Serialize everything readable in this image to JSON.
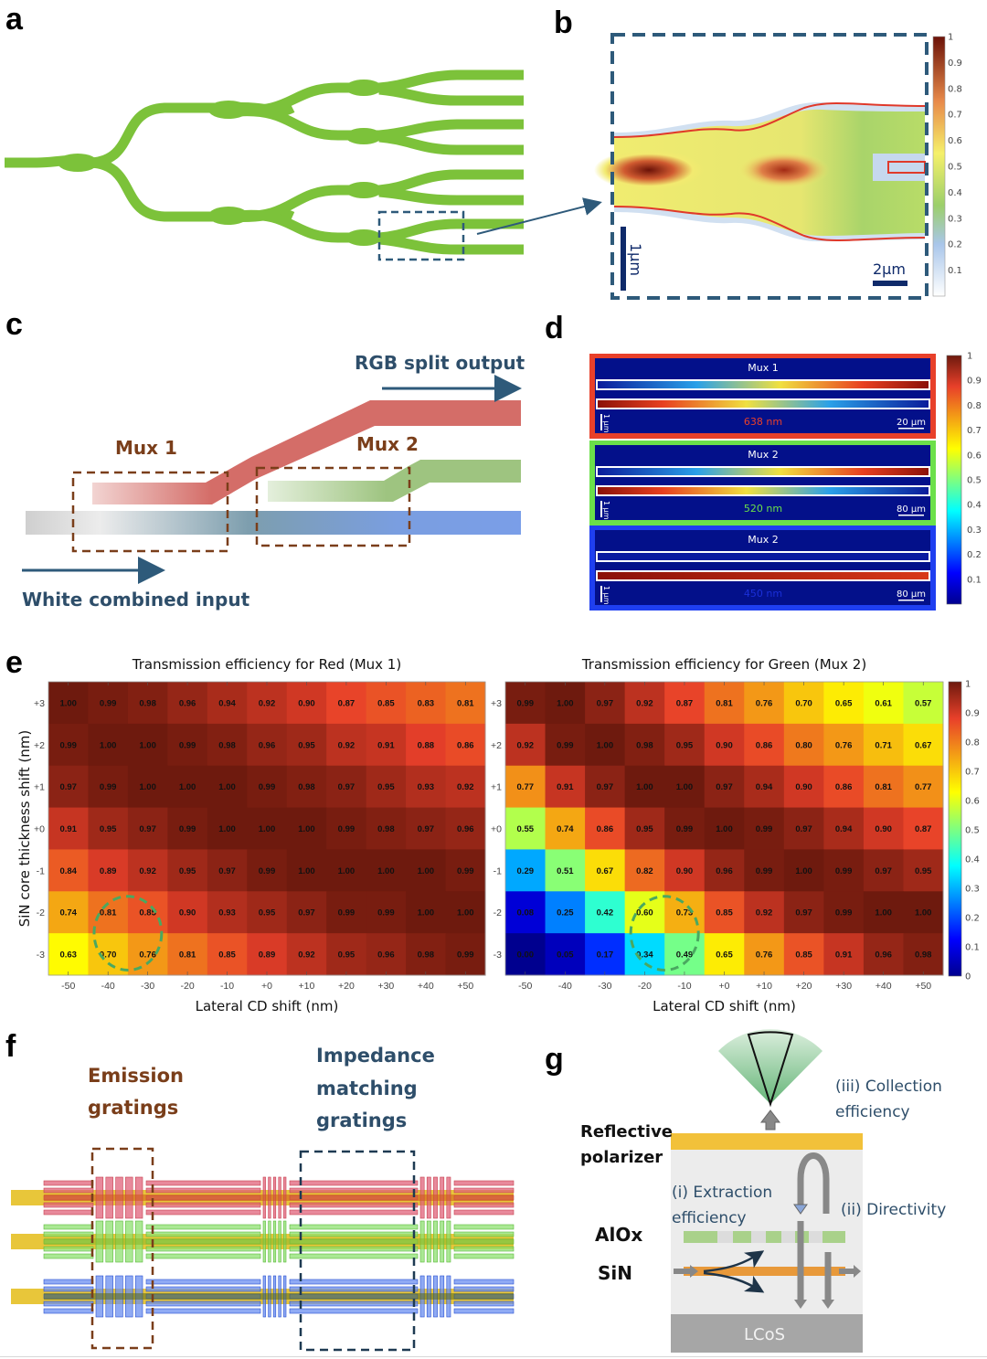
{
  "panels": {
    "a": {
      "letter": "a"
    },
    "b": {
      "letter": "b",
      "scalebar_vertical": "1μm",
      "scalebar_horizontal": "2μm",
      "colorbar_ticks": [
        "1",
        "0.9",
        "0.8",
        "0.7",
        "0.6",
        "0.5",
        "0.4",
        "0.3",
        "0.2",
        "0.1"
      ]
    },
    "c": {
      "letter": "c",
      "output_label": "RGB split output",
      "input_label": "White combined input",
      "mux1_label": "Mux 1",
      "mux2_label": "Mux 2"
    },
    "d": {
      "letter": "d",
      "colorbar_ticks": [
        "1",
        "0.9",
        "0.8",
        "0.7",
        "0.6",
        "0.5",
        "0.4",
        "0.3",
        "0.2",
        "0.1"
      ],
      "rows": [
        {
          "title": "Mux 1",
          "wavelength": "638 nm",
          "scale": "20 μm",
          "unit_bar": "1 μm",
          "frame_color": "#e8402a",
          "wl_color": "#e8402a"
        },
        {
          "title": "Mux 2",
          "wavelength": "520 nm",
          "scale": "80 μm",
          "unit_bar": "1 μm",
          "frame_color": "#6be04a",
          "wl_color": "#6be04a"
        },
        {
          "title": "Mux 2",
          "wavelength": "450 nm",
          "scale": "80 μm",
          "unit_bar": "1 μm",
          "frame_color": "#1f3ff0",
          "wl_color": "#1a2fd8"
        }
      ]
    },
    "e": {
      "letter": "e"
    },
    "f": {
      "letter": "f",
      "emission_label_line1": "Emission",
      "emission_label_line2": "gratings",
      "impedance_label_line1": "Impedance",
      "impedance_label_line2": "matching",
      "impedance_label_line3": "gratings"
    },
    "g": {
      "letter": "g",
      "reflective_line1": "Reflective",
      "reflective_line2": "polarizer",
      "alox": "AlOx",
      "sin": "SiN",
      "lcos": "LCoS",
      "extraction_line1": "(i) Extraction",
      "extraction_line2": "efficiency",
      "directivity": "(ii) Directivity",
      "collection_line1": "(iii) Collection",
      "collection_line2": "efficiency"
    }
  },
  "chart_data": [
    {
      "type": "heatmap",
      "title": "Transmission efficiency for Red (Mux 1)",
      "xlabel": "Lateral CD shift (nm)",
      "ylabel": "SiN core thickness shift (nm)",
      "x": [
        "-50",
        "-40",
        "-30",
        "-20",
        "-10",
        "+0",
        "+10",
        "+20",
        "+30",
        "+40",
        "+50"
      ],
      "y": [
        "+3",
        "+2",
        "+1",
        "+0",
        "-1",
        "-2",
        "-3"
      ],
      "values": [
        [
          1.0,
          0.99,
          0.98,
          0.96,
          0.94,
          0.92,
          0.9,
          0.87,
          0.85,
          0.83,
          0.81
        ],
        [
          0.99,
          1.0,
          1.0,
          0.99,
          0.98,
          0.96,
          0.95,
          0.92,
          0.91,
          0.88,
          0.86
        ],
        [
          0.97,
          0.99,
          1.0,
          1.0,
          1.0,
          0.99,
          0.98,
          0.97,
          0.95,
          0.93,
          0.92
        ],
        [
          0.91,
          0.95,
          0.97,
          0.99,
          1.0,
          1.0,
          1.0,
          0.99,
          0.98,
          0.97,
          0.96
        ],
        [
          0.84,
          0.89,
          0.92,
          0.95,
          0.97,
          0.99,
          1.0,
          1.0,
          1.0,
          1.0,
          0.99
        ],
        [
          0.74,
          0.81,
          0.85,
          0.9,
          0.93,
          0.95,
          0.97,
          0.99,
          0.99,
          1.0,
          1.0
        ],
        [
          0.63,
          0.7,
          0.76,
          0.81,
          0.85,
          0.89,
          0.92,
          0.95,
          0.96,
          0.98,
          0.99
        ]
      ],
      "colormap": "jet",
      "clim": [
        0,
        1
      ],
      "highlight": {
        "x": [
          "-40",
          "-30"
        ],
        "y": [
          "-2",
          "-3"
        ],
        "style": "green dashed circle"
      }
    },
    {
      "type": "heatmap",
      "title": "Transmission efficiency for Green (Mux 2)",
      "xlabel": "Lateral CD shift (nm)",
      "ylabel": "",
      "x": [
        "-50",
        "-40",
        "-30",
        "-20",
        "-10",
        "+0",
        "+10",
        "+20",
        "+30",
        "+40",
        "+50"
      ],
      "y": [
        "+3",
        "+2",
        "+1",
        "+0",
        "-1",
        "-2",
        "-3"
      ],
      "values": [
        [
          0.99,
          1.0,
          0.97,
          0.92,
          0.87,
          0.81,
          0.76,
          0.7,
          0.65,
          0.61,
          0.57
        ],
        [
          0.92,
          0.99,
          1.0,
          0.98,
          0.95,
          0.9,
          0.86,
          0.8,
          0.76,
          0.71,
          0.67
        ],
        [
          0.77,
          0.91,
          0.97,
          1.0,
          1.0,
          0.97,
          0.94,
          0.9,
          0.86,
          0.81,
          0.77
        ],
        [
          0.55,
          0.74,
          0.86,
          0.95,
          0.99,
          1.0,
          0.99,
          0.97,
          0.94,
          0.9,
          0.87
        ],
        [
          0.29,
          0.51,
          0.67,
          0.82,
          0.9,
          0.96,
          0.99,
          1.0,
          0.99,
          0.97,
          0.95
        ],
        [
          0.08,
          0.25,
          0.42,
          0.6,
          0.73,
          0.85,
          0.92,
          0.97,
          0.99,
          1.0,
          1.0
        ],
        [
          0.0,
          0.05,
          0.17,
          0.34,
          0.49,
          0.65,
          0.76,
          0.85,
          0.91,
          0.96,
          0.98
        ]
      ],
      "colormap": "jet",
      "clim": [
        0,
        1
      ],
      "colorbar_ticks": [
        "1",
        "0.9",
        "0.8",
        "0.7",
        "0.6",
        "0.5",
        "0.4",
        "0.3",
        "0.2",
        "0.1",
        "0"
      ],
      "highlight": {
        "x": [
          "-20",
          "-10"
        ],
        "y": [
          "-2",
          "-3"
        ],
        "style": "green dashed circle"
      }
    }
  ]
}
